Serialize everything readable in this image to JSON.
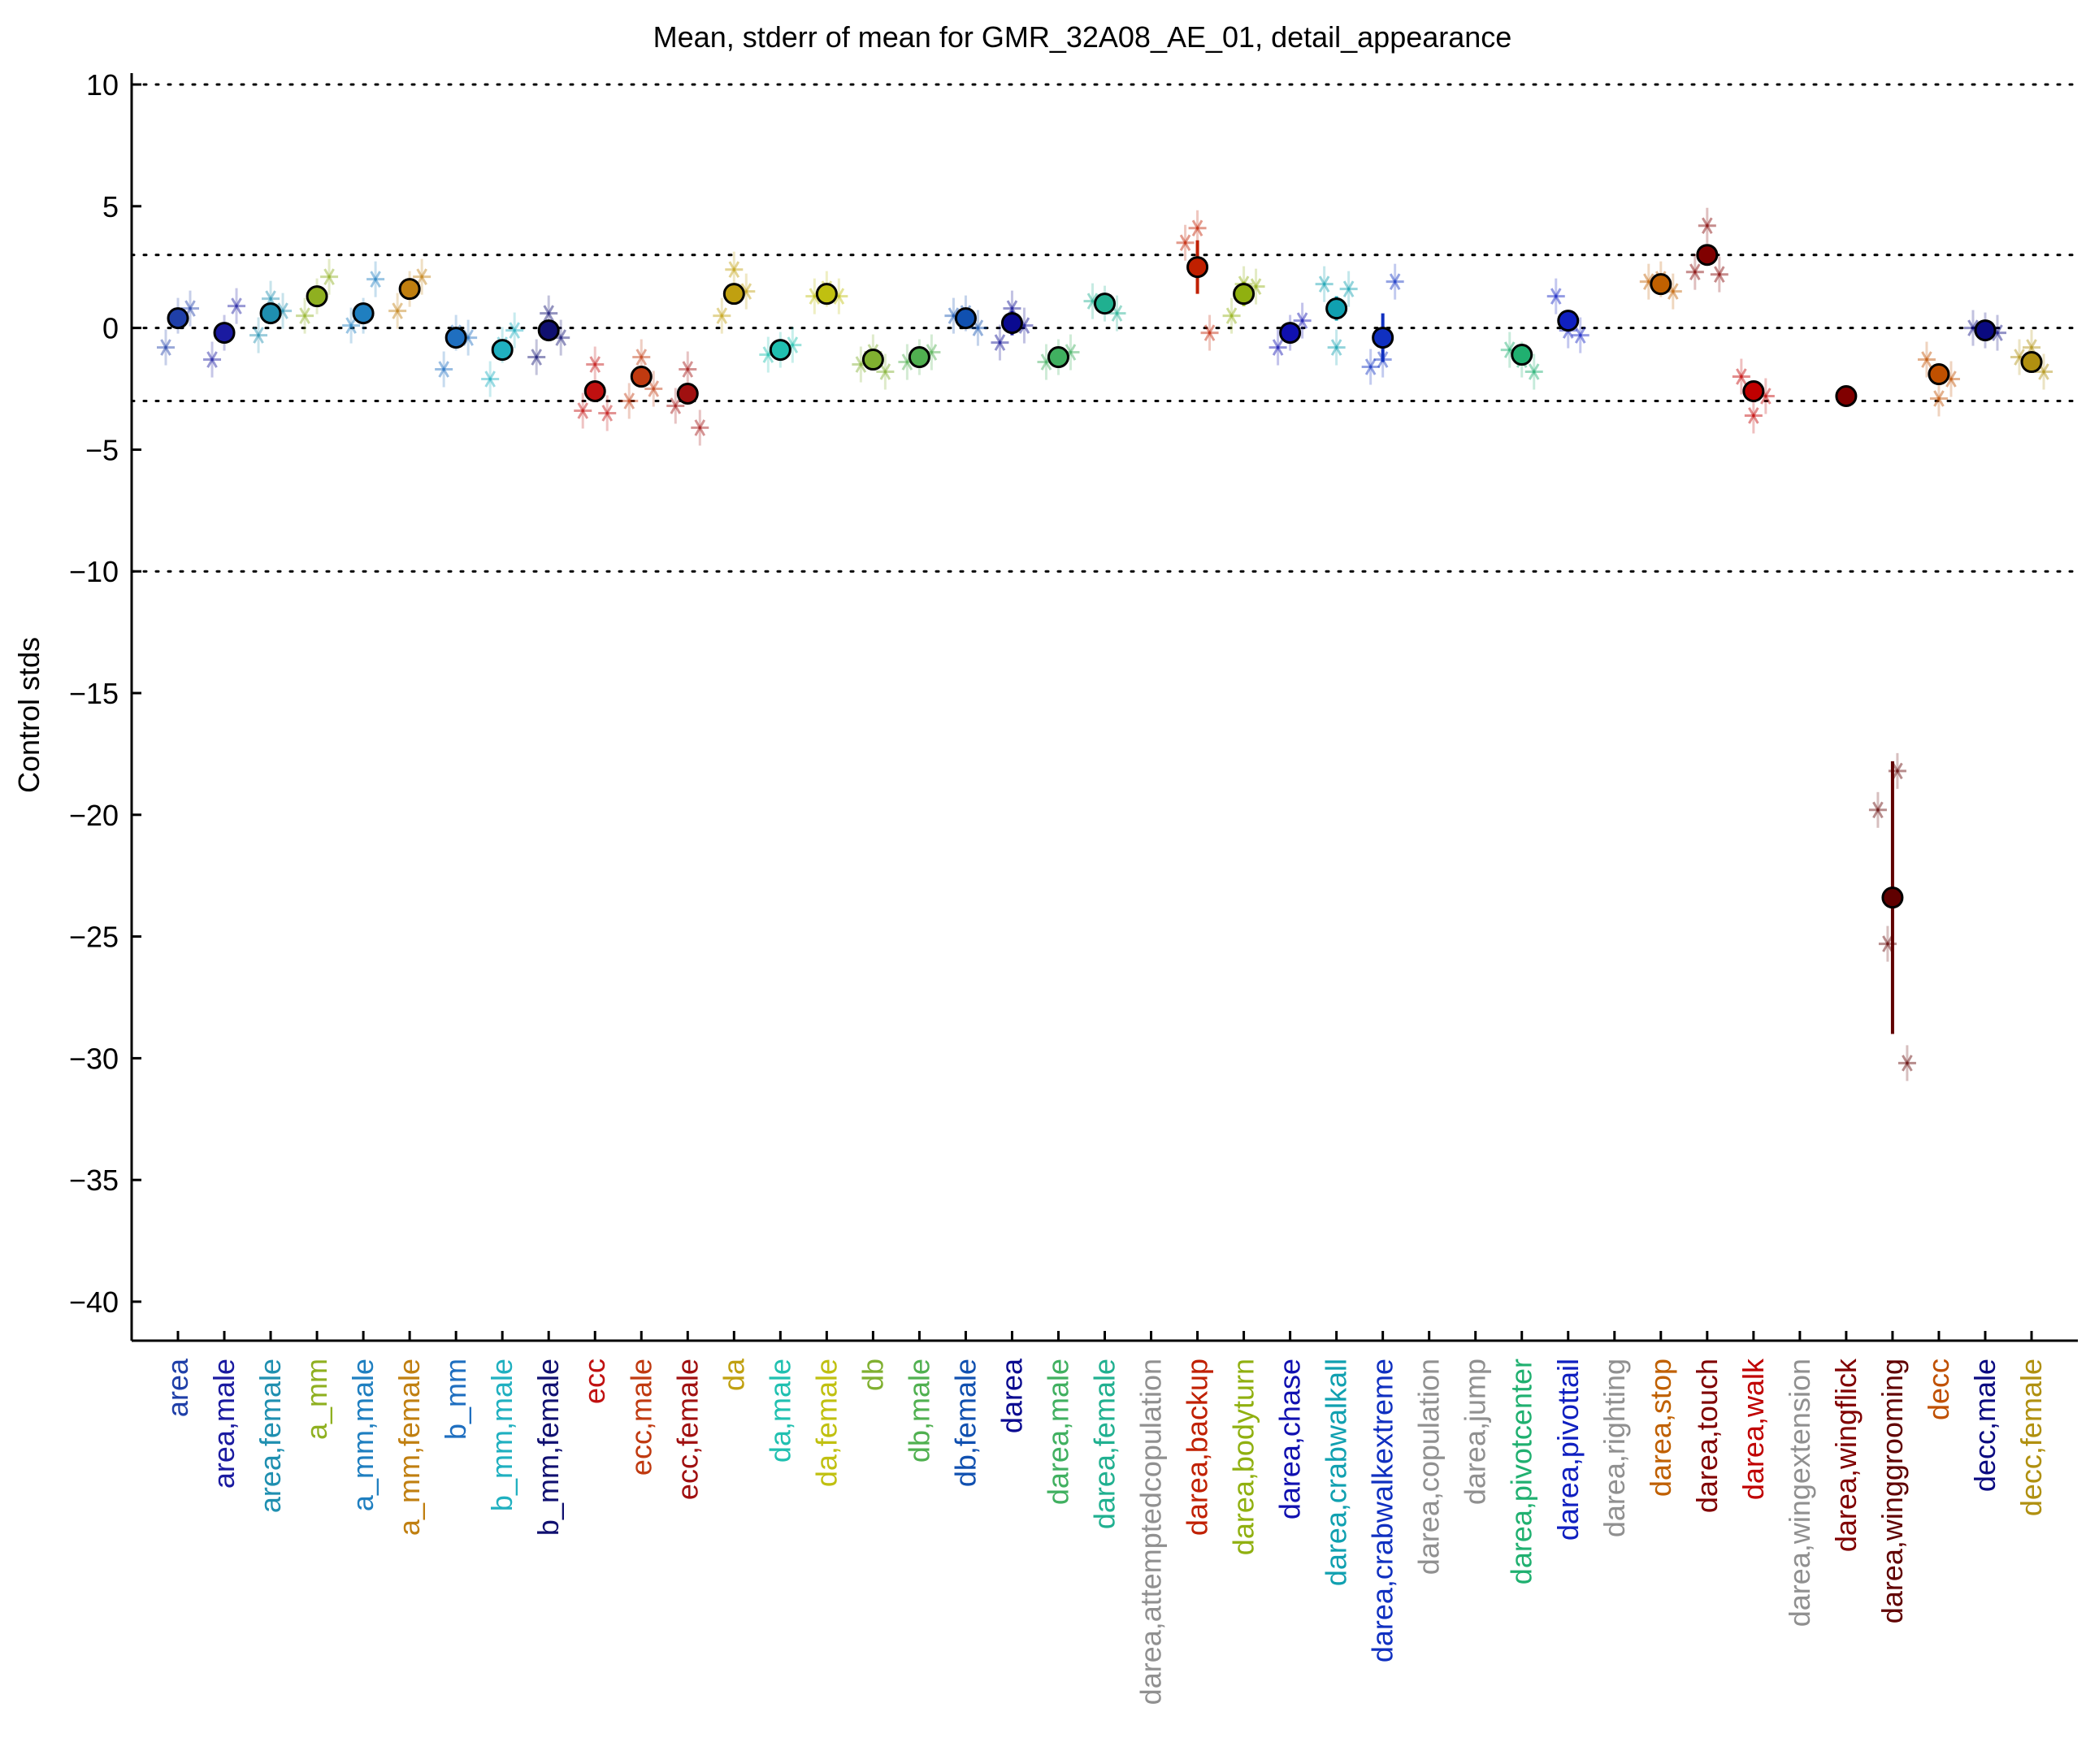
{
  "chart_data": {
    "type": "scatter",
    "title": "Mean, stderr of mean for GMR_32A08_AE_01, detail_appearance",
    "ylabel": "Control stds",
    "ylim": [
      -41.5,
      10.5
    ],
    "yticks": [
      10,
      5,
      0,
      -5,
      -10,
      -15,
      -20,
      -25,
      -30,
      -35,
      -40
    ],
    "ytick_labels": [
      "10",
      "5",
      "0",
      "−5",
      "−10",
      "−15",
      "−20",
      "−25",
      "−30",
      "−35",
      "−40"
    ],
    "reference_lines": [
      10,
      3,
      0,
      -3,
      -10
    ],
    "categories": [
      {
        "label": "area",
        "color": "#1f3fa8",
        "mean": 0.4,
        "sem": 0.3,
        "sub": [
          -0.8,
          0.5,
          0.8
        ]
      },
      {
        "label": "area,male",
        "color": "#1a1aa0",
        "mean": -0.2,
        "sem": 0.3,
        "sub": [
          -1.3,
          -0.2,
          0.9
        ]
      },
      {
        "label": "area,female",
        "color": "#1f8fb0",
        "mean": 0.6,
        "sem": 0.3,
        "sub": [
          -0.3,
          1.2,
          0.7
        ]
      },
      {
        "label": "a_mm",
        "color": "#8fb020",
        "mean": 1.3,
        "sem": 0.3,
        "sub": [
          0.5,
          1.3,
          2.1
        ]
      },
      {
        "label": "a_mm,male",
        "color": "#1f7fc0",
        "mean": 0.6,
        "sem": 0.3,
        "sub": [
          0.1,
          0.5,
          2.0
        ]
      },
      {
        "label": "a_mm,female",
        "color": "#c07f10",
        "mean": 1.6,
        "sem": 0.3,
        "sub": [
          0.7,
          1.6,
          2.1
        ]
      },
      {
        "label": "b_mm",
        "color": "#1f6fc0",
        "mean": -0.4,
        "sem": 0.4,
        "sub": [
          -1.7,
          -0.2,
          -0.4
        ]
      },
      {
        "label": "b_mm,male",
        "color": "#20b0c0",
        "mean": -0.9,
        "sem": 0.3,
        "sub": [
          -2.1,
          -0.7,
          -0.1
        ]
      },
      {
        "label": "b_mm,female",
        "color": "#101070",
        "mean": -0.1,
        "sem": 0.4,
        "sub": [
          -1.2,
          0.6,
          -0.4
        ]
      },
      {
        "label": "ecc",
        "color": "#c01010",
        "mean": -2.6,
        "sem": 0.4,
        "sub": [
          -3.4,
          -1.5,
          -3.5
        ]
      },
      {
        "label": "ecc,male",
        "color": "#c03a10",
        "mean": -2.0,
        "sem": 0.4,
        "sub": [
          -3.0,
          -1.2,
          -2.5
        ]
      },
      {
        "label": "ecc,female",
        "color": "#a01010",
        "mean": -2.7,
        "sem": 0.4,
        "sub": [
          -3.2,
          -1.7,
          -4.1
        ]
      },
      {
        "label": "da",
        "color": "#c0a010",
        "mean": 1.4,
        "sem": 0.3,
        "sub": [
          0.5,
          2.4,
          1.5
        ]
      },
      {
        "label": "da,male",
        "color": "#20c0b0",
        "mean": -0.9,
        "sem": 0.2,
        "sub": [
          -1.1,
          -0.9,
          -0.7
        ]
      },
      {
        "label": "da,female",
        "color": "#c0c010",
        "mean": 1.4,
        "sem": 0.2,
        "sub": [
          1.3,
          1.6,
          1.3
        ]
      },
      {
        "label": "db",
        "color": "#80b030",
        "mean": -1.3,
        "sem": 0.4,
        "sub": [
          -1.5,
          -1.0,
          -1.8
        ]
      },
      {
        "label": "db,male",
        "color": "#50b050",
        "mean": -1.2,
        "sem": 0.2,
        "sub": [
          -1.4,
          -1.2,
          -1.0
        ]
      },
      {
        "label": "db,female",
        "color": "#1050b0",
        "mean": 0.4,
        "sem": 0.2,
        "sub": [
          0.5,
          0.6,
          0.0
        ]
      },
      {
        "label": "darea",
        "color": "#0a0a90",
        "mean": 0.2,
        "sem": 0.5,
        "sub": [
          -0.6,
          0.8,
          0.1
        ]
      },
      {
        "label": "darea,male",
        "color": "#40b060",
        "mean": -1.2,
        "sem": 0.2,
        "sub": [
          -1.4,
          -1.2,
          -1.0
        ]
      },
      {
        "label": "darea,female",
        "color": "#20b090",
        "mean": 1.0,
        "sem": 0.2,
        "sub": [
          1.1,
          1.0,
          0.6
        ]
      },
      {
        "label": "darea,attemptedcopulation",
        "color": "#909090",
        "mean": null,
        "sem": null,
        "sub": []
      },
      {
        "label": "darea,backup",
        "color": "#c02000",
        "mean": 2.5,
        "sem": 1.1,
        "sub": [
          3.5,
          4.1,
          -0.2
        ]
      },
      {
        "label": "darea,bodyturn",
        "color": "#90b010",
        "mean": 1.4,
        "sem": 0.5,
        "sub": [
          0.5,
          1.8,
          1.7
        ]
      },
      {
        "label": "darea,chase",
        "color": "#1010b0",
        "mean": -0.2,
        "sem": 0.4,
        "sub": [
          -0.8,
          -0.2,
          0.3
        ]
      },
      {
        "label": "darea,crabwalkall",
        "color": "#10a0b0",
        "mean": 0.8,
        "sem": 0.5,
        "sub": [
          1.8,
          -0.8,
          1.6
        ]
      },
      {
        "label": "darea,crabwalkextreme",
        "color": "#1030c0",
        "mean": -0.4,
        "sem": 1.0,
        "sub": [
          -1.6,
          -1.3,
          1.9
        ]
      },
      {
        "label": "darea,copulation",
        "color": "#909090",
        "mean": null,
        "sem": null,
        "sub": []
      },
      {
        "label": "darea,jump",
        "color": "#909090",
        "mean": null,
        "sem": null,
        "sub": []
      },
      {
        "label": "darea,pivotcenter",
        "color": "#20b070",
        "mean": -1.1,
        "sem": 0.4,
        "sub": [
          -0.9,
          -1.3,
          -1.8
        ]
      },
      {
        "label": "darea,pivottail",
        "color": "#1020c0",
        "mean": 0.3,
        "sem": 0.3,
        "sub": [
          1.3,
          -0.1,
          -0.3
        ]
      },
      {
        "label": "darea,righting",
        "color": "#909090",
        "mean": null,
        "sem": null,
        "sub": []
      },
      {
        "label": "darea,stop",
        "color": "#c06000",
        "mean": 1.8,
        "sem": 0.2,
        "sub": [
          1.9,
          2.0,
          1.5
        ]
      },
      {
        "label": "darea,touch",
        "color": "#800000",
        "mean": 3.0,
        "sem": 0.3,
        "sub": [
          2.3,
          4.2,
          2.2
        ]
      },
      {
        "label": "darea,walk",
        "color": "#c00000",
        "mean": -2.6,
        "sem": 0.3,
        "sub": [
          -2.0,
          -3.6,
          -2.8
        ]
      },
      {
        "label": "darea,wingextension",
        "color": "#909090",
        "mean": null,
        "sem": null,
        "sub": []
      },
      {
        "label": "darea,wingflick",
        "color": "#800000",
        "mean": -2.8,
        "sem": 0.2,
        "sub": []
      },
      {
        "label": "darea,winggrooming",
        "color": "#600000",
        "mean": -23.4,
        "sem": 5.6,
        "sub": [
          -19.8,
          -25.3,
          -18.2,
          -30.2
        ]
      },
      {
        "label": "decc",
        "color": "#c05000",
        "mean": -1.9,
        "sem": 0.4,
        "sub": [
          -1.3,
          -2.9,
          -2.1
        ]
      },
      {
        "label": "decc,male",
        "color": "#0a0a80",
        "mean": -0.1,
        "sem": 0.2,
        "sub": [
          0.0,
          -0.1,
          -0.2
        ]
      },
      {
        "label": "decc,female",
        "color": "#b09010",
        "mean": -1.4,
        "sem": 0.3,
        "sub": [
          -1.2,
          -0.8,
          -1.8
        ]
      }
    ]
  }
}
